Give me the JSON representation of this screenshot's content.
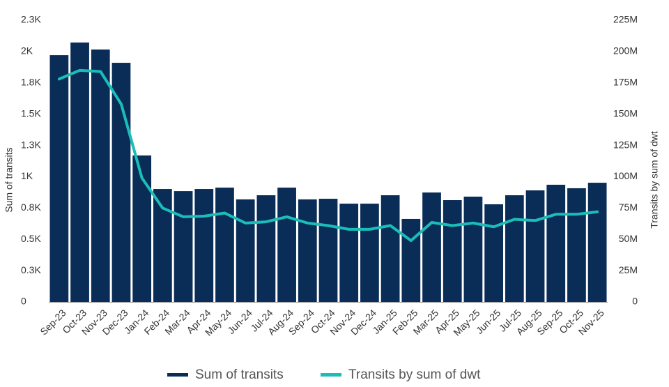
{
  "chart_data": {
    "type": "bar-line",
    "categories": [
      "Sep-23",
      "Oct-23",
      "Nov-23",
      "Dec-23",
      "Jan-24",
      "Feb-24",
      "Mar-24",
      "Apr-24",
      "May-24",
      "Jun-24",
      "Jul-24",
      "Aug-24",
      "Sep-24",
      "Oct-24",
      "Nov-24",
      "Dec-24",
      "Jan-25",
      "Feb-25",
      "Mar-25",
      "Apr-25",
      "May-25",
      "Jun-25",
      "Jul-25",
      "Aug-25",
      "Sep-25",
      "Oct-25",
      "Nov-25"
    ],
    "y_label": "Sum of transits",
    "y2_label": "Transits by sum of dwt",
    "ylim": [
      0,
      2250
    ],
    "yticks": [
      0,
      {
        "value": 250,
        "label": "0.3K"
      },
      {
        "value": 500,
        "label": "0.5K"
      },
      {
        "value": 750,
        "label": "0.8K"
      },
      {
        "value": 1000,
        "label": "1K"
      },
      {
        "value": 1250,
        "label": "1.3K"
      },
      {
        "value": 1500,
        "label": "1.5K"
      },
      {
        "value": 1750,
        "label": "1.8K"
      },
      {
        "value": 2000,
        "label": "2K"
      },
      {
        "value": 2250,
        "label": "2.3K"
      }
    ],
    "y2lim": [
      0,
      225000000
    ],
    "y2ticks": [
      0,
      {
        "value": 25000000,
        "label": "25M"
      },
      {
        "value": 50000000,
        "label": "50M"
      },
      {
        "value": 75000000,
        "label": "75M"
      },
      {
        "value": 100000000,
        "label": "100M"
      },
      {
        "value": 125000000,
        "label": "125M"
      },
      {
        "value": 150000000,
        "label": "150M"
      },
      {
        "value": 175000000,
        "label": "175M"
      },
      {
        "value": 200000000,
        "label": "200M"
      },
      {
        "value": 225000000,
        "label": "225M"
      }
    ],
    "series": [
      {
        "name": "Sum of transits",
        "type": "bar",
        "color": "#0a2d57",
        "values": [
          1971,
          2072,
          2016,
          1910,
          1170,
          902,
          885,
          902,
          913,
          819,
          852,
          913,
          819,
          824,
          785,
          785,
          852,
          663,
          874,
          813,
          841,
          780,
          852,
          891,
          936,
          908,
          952
        ]
      },
      {
        "name": "Transits by sum of dwt",
        "type": "line",
        "axis": "y2",
        "color": "#1bbdb8",
        "values": [
          178000000,
          185000000,
          184000000,
          158000000,
          99000000,
          75000000,
          68000000,
          68500000,
          71000000,
          63000000,
          64000000,
          68000000,
          63000000,
          61000000,
          58000000,
          58000000,
          61000000,
          49000000,
          63500000,
          61000000,
          63000000,
          60000000,
          66000000,
          65000000,
          70000000,
          70000000,
          72000000
        ]
      }
    ]
  }
}
